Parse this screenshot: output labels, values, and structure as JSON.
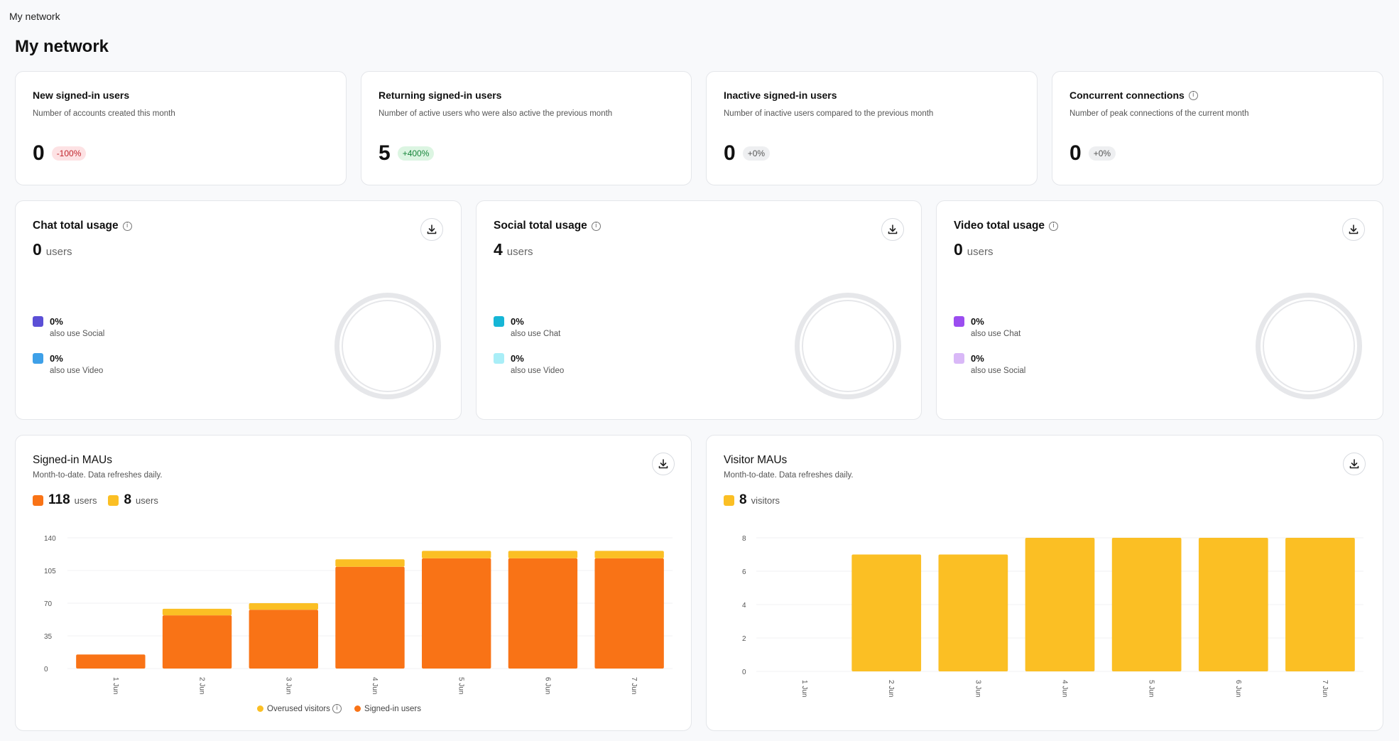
{
  "breadcrumb": "My network",
  "page_title": "My network",
  "kpis": [
    {
      "title": "New signed-in users",
      "desc": "Number of accounts created this month",
      "value": "0",
      "badge": "-100%",
      "badge_color": "#fde2e4",
      "has_info": false
    },
    {
      "title": "Returning signed-in users",
      "desc": "Number of active users who were also active the previous month",
      "value": "5",
      "badge": "+400%",
      "badge_color": "#dcf5e2",
      "has_info": false
    },
    {
      "title": "Inactive signed-in users",
      "desc": "Number of inactive users compared to the previous month",
      "value": "0",
      "badge": "+0%",
      "badge_color": "#eeeff1",
      "has_info": false
    },
    {
      "title": "Concurrent connections",
      "desc": "Number of peak connections of the current month",
      "value": "0",
      "badge": "+0%",
      "badge_color": "#eeeff1",
      "has_info": true
    }
  ],
  "usage": [
    {
      "title": "Chat total usage",
      "count": "0",
      "unit": "users",
      "legend": [
        {
          "pct": "0%",
          "label": "also use Social",
          "color": "#5b4fd6"
        },
        {
          "pct": "0%",
          "label": "also use Video",
          "color": "#3ea0e8"
        }
      ]
    },
    {
      "title": "Social total usage",
      "count": "4",
      "unit": "users",
      "legend": [
        {
          "pct": "0%",
          "label": "also use Chat",
          "color": "#16b6d6"
        },
        {
          "pct": "0%",
          "label": "also use Video",
          "color": "#a9eef7"
        }
      ]
    },
    {
      "title": "Video total usage",
      "count": "0",
      "unit": "users",
      "legend": [
        {
          "pct": "0%",
          "label": "also use Chat",
          "color": "#9b4df0"
        },
        {
          "pct": "0%",
          "label": "also use Social",
          "color": "#d9b8f7"
        }
      ]
    }
  ],
  "signed_in_mau": {
    "title": "Signed-in MAUs",
    "subtitle": "Month-to-date. Data refreshes daily.",
    "stat1": {
      "value": "118",
      "unit": "users",
      "color": "#f97316"
    },
    "stat2": {
      "value": "8",
      "unit": "users",
      "color": "#fbbf24"
    },
    "legend_overused": "Overused visitors",
    "legend_signed": "Signed-in users"
  },
  "visitor_mau": {
    "title": "Visitor MAUs",
    "subtitle": "Month-to-date. Data refreshes daily.",
    "stat": {
      "value": "8",
      "unit": "visitors",
      "color": "#fbbf24"
    }
  },
  "chart_data": [
    {
      "type": "bar",
      "stacked": true,
      "categories": [
        "1 Jun",
        "2 Jun",
        "3 Jun",
        "4 Jun",
        "5 Jun",
        "6 Jun",
        "7 Jun"
      ],
      "series": [
        {
          "name": "Signed-in users",
          "color": "#f97316",
          "values": [
            15,
            57,
            63,
            109,
            118,
            118,
            118
          ]
        },
        {
          "name": "Overused visitors",
          "color": "#fbbf24",
          "values": [
            0,
            7,
            7,
            8,
            8,
            8,
            8
          ]
        }
      ],
      "yticks": [
        0,
        35,
        70,
        105,
        140
      ],
      "ylim": [
        0,
        140
      ],
      "grid": true
    },
    {
      "type": "bar",
      "categories": [
        "1 Jun",
        "2 Jun",
        "3 Jun",
        "4 Jun",
        "5 Jun",
        "6 Jun",
        "7 Jun"
      ],
      "series": [
        {
          "color": "#fbbf24",
          "values": [
            0,
            7,
            7,
            8,
            8,
            8,
            8
          ]
        }
      ],
      "yticks": [
        0,
        2,
        4,
        6,
        8
      ],
      "ylim": [
        0,
        8
      ],
      "grid": true
    }
  ]
}
